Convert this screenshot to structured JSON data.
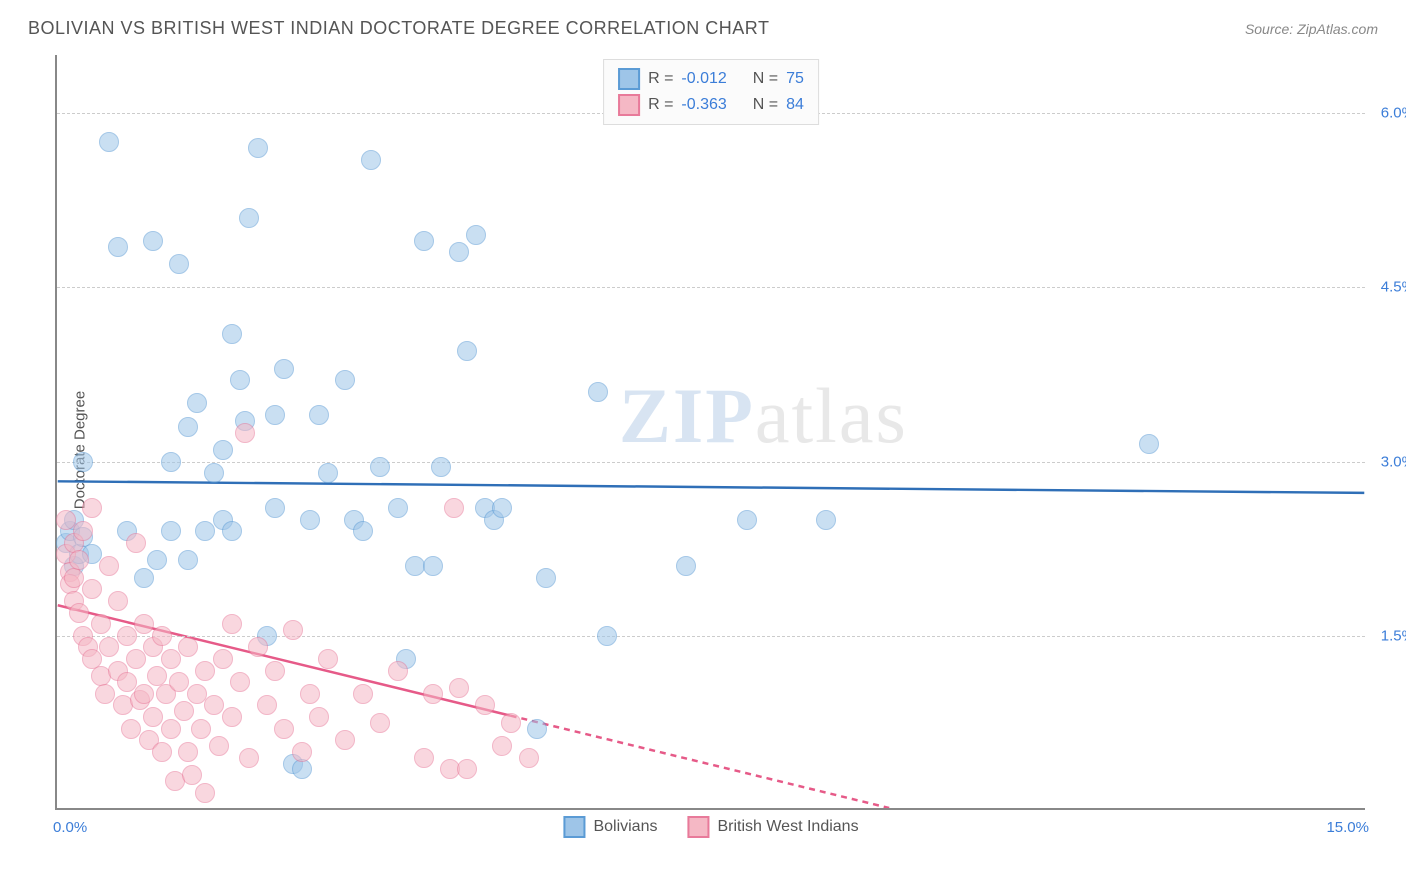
{
  "header": {
    "title": "BOLIVIAN VS BRITISH WEST INDIAN DOCTORATE DEGREE CORRELATION CHART",
    "source_prefix": "Source: ",
    "source": "ZipAtlas.com"
  },
  "chart": {
    "type": "scatter",
    "ylabel": "Doctorate Degree",
    "xlim": [
      0,
      15
    ],
    "ylim": [
      0,
      6.5
    ],
    "xtick_labels": {
      "left": "0.0%",
      "right": "15.0%"
    },
    "ytick_positions": [
      1.5,
      3.0,
      4.5,
      6.0
    ],
    "ytick_labels": [
      "1.5%",
      "3.0%",
      "4.5%",
      "6.0%"
    ],
    "grid_color": "#cccccc",
    "background_color": "#ffffff",
    "axis_color": "#888888",
    "point_radius": 10,
    "point_opacity": 0.55,
    "series": [
      {
        "name": "Bolivians",
        "fill": "#9ec5e8",
        "stroke": "#5b9bd5",
        "line_color": "#2f6fb7",
        "R": "-0.012",
        "N": "75",
        "trend": {
          "y_at_x0": 2.82,
          "y_at_x15": 2.72
        },
        "points": [
          [
            0.1,
            2.3
          ],
          [
            0.15,
            2.4
          ],
          [
            0.2,
            2.1
          ],
          [
            0.2,
            2.5
          ],
          [
            0.25,
            2.2
          ],
          [
            0.3,
            3.0
          ],
          [
            0.3,
            2.35
          ],
          [
            0.4,
            2.2
          ],
          [
            0.6,
            5.75
          ],
          [
            0.7,
            4.85
          ],
          [
            0.8,
            2.4
          ],
          [
            1.0,
            2.0
          ],
          [
            1.1,
            4.9
          ],
          [
            1.15,
            2.15
          ],
          [
            1.3,
            3.0
          ],
          [
            1.3,
            2.4
          ],
          [
            1.4,
            4.7
          ],
          [
            1.5,
            3.3
          ],
          [
            1.5,
            2.15
          ],
          [
            1.6,
            3.5
          ],
          [
            1.7,
            2.4
          ],
          [
            1.8,
            2.9
          ],
          [
            1.9,
            3.1
          ],
          [
            1.9,
            2.5
          ],
          [
            2.0,
            4.1
          ],
          [
            2.0,
            2.4
          ],
          [
            2.1,
            3.7
          ],
          [
            2.15,
            3.35
          ],
          [
            2.2,
            5.1
          ],
          [
            2.3,
            5.7
          ],
          [
            2.4,
            1.5
          ],
          [
            2.5,
            3.4
          ],
          [
            2.5,
            2.6
          ],
          [
            2.6,
            3.8
          ],
          [
            2.7,
            0.4
          ],
          [
            2.8,
            0.35
          ],
          [
            2.9,
            2.5
          ],
          [
            3.0,
            3.4
          ],
          [
            3.1,
            2.9
          ],
          [
            3.3,
            3.7
          ],
          [
            3.4,
            2.5
          ],
          [
            3.5,
            2.4
          ],
          [
            3.6,
            5.6
          ],
          [
            3.7,
            2.95
          ],
          [
            3.9,
            2.6
          ],
          [
            4.0,
            1.3
          ],
          [
            4.1,
            2.1
          ],
          [
            4.2,
            4.9
          ],
          [
            4.3,
            2.1
          ],
          [
            4.4,
            2.95
          ],
          [
            4.6,
            4.8
          ],
          [
            4.7,
            3.95
          ],
          [
            4.8,
            4.95
          ],
          [
            4.9,
            2.6
          ],
          [
            5.0,
            2.5
          ],
          [
            5.1,
            2.6
          ],
          [
            5.5,
            0.7
          ],
          [
            5.6,
            2.0
          ],
          [
            6.2,
            3.6
          ],
          [
            6.3,
            1.5
          ],
          [
            7.2,
            2.1
          ],
          [
            7.9,
            2.5
          ],
          [
            8.8,
            2.5
          ],
          [
            12.5,
            3.15
          ]
        ]
      },
      {
        "name": "British West Indians",
        "fill": "#f5b8c5",
        "stroke": "#e87a9a",
        "line_color": "#e65a88",
        "R": "-0.363",
        "N": "84",
        "trend": {
          "y_at_x0": 1.75,
          "y_at_x15": -1.0,
          "solid_until_x": 5.2
        },
        "points": [
          [
            0.1,
            2.5
          ],
          [
            0.1,
            2.2
          ],
          [
            0.15,
            2.05
          ],
          [
            0.15,
            1.95
          ],
          [
            0.2,
            2.3
          ],
          [
            0.2,
            2.0
          ],
          [
            0.2,
            1.8
          ],
          [
            0.25,
            2.15
          ],
          [
            0.25,
            1.7
          ],
          [
            0.3,
            2.4
          ],
          [
            0.3,
            1.5
          ],
          [
            0.35,
            1.4
          ],
          [
            0.4,
            2.6
          ],
          [
            0.4,
            1.9
          ],
          [
            0.4,
            1.3
          ],
          [
            0.5,
            1.6
          ],
          [
            0.5,
            1.15
          ],
          [
            0.55,
            1.0
          ],
          [
            0.6,
            2.1
          ],
          [
            0.6,
            1.4
          ],
          [
            0.7,
            1.8
          ],
          [
            0.7,
            1.2
          ],
          [
            0.75,
            0.9
          ],
          [
            0.8,
            1.5
          ],
          [
            0.8,
            1.1
          ],
          [
            0.85,
            0.7
          ],
          [
            0.9,
            2.3
          ],
          [
            0.9,
            1.3
          ],
          [
            0.95,
            0.95
          ],
          [
            1.0,
            1.6
          ],
          [
            1.0,
            1.0
          ],
          [
            1.05,
            0.6
          ],
          [
            1.1,
            1.4
          ],
          [
            1.1,
            0.8
          ],
          [
            1.15,
            1.15
          ],
          [
            1.2,
            1.5
          ],
          [
            1.2,
            0.5
          ],
          [
            1.25,
            1.0
          ],
          [
            1.3,
            1.3
          ],
          [
            1.3,
            0.7
          ],
          [
            1.35,
            0.25
          ],
          [
            1.4,
            1.1
          ],
          [
            1.45,
            0.85
          ],
          [
            1.5,
            1.4
          ],
          [
            1.5,
            0.5
          ],
          [
            1.55,
            0.3
          ],
          [
            1.6,
            1.0
          ],
          [
            1.65,
            0.7
          ],
          [
            1.7,
            1.2
          ],
          [
            1.7,
            0.15
          ],
          [
            1.8,
            0.9
          ],
          [
            1.85,
            0.55
          ],
          [
            1.9,
            1.3
          ],
          [
            2.0,
            1.6
          ],
          [
            2.0,
            0.8
          ],
          [
            2.1,
            1.1
          ],
          [
            2.15,
            3.25
          ],
          [
            2.2,
            0.45
          ],
          [
            2.3,
            1.4
          ],
          [
            2.4,
            0.9
          ],
          [
            2.5,
            1.2
          ],
          [
            2.6,
            0.7
          ],
          [
            2.7,
            1.55
          ],
          [
            2.8,
            0.5
          ],
          [
            2.9,
            1.0
          ],
          [
            3.0,
            0.8
          ],
          [
            3.1,
            1.3
          ],
          [
            3.3,
            0.6
          ],
          [
            3.5,
            1.0
          ],
          [
            3.7,
            0.75
          ],
          [
            3.9,
            1.2
          ],
          [
            4.2,
            0.45
          ],
          [
            4.3,
            1.0
          ],
          [
            4.5,
            0.35
          ],
          [
            4.55,
            2.6
          ],
          [
            4.6,
            1.05
          ],
          [
            4.7,
            0.35
          ],
          [
            4.9,
            0.9
          ],
          [
            5.1,
            0.55
          ],
          [
            5.2,
            0.75
          ],
          [
            5.4,
            0.45
          ]
        ]
      }
    ],
    "watermark": {
      "zip": "ZIP",
      "atlas": "atlas"
    },
    "legend_top": {
      "r_label": "R = ",
      "n_label": "N = "
    }
  }
}
